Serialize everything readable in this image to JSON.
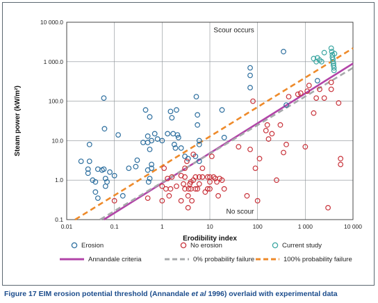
{
  "chart_data": {
    "type": "scatter",
    "xscale": "log",
    "yscale": "log",
    "xlim": [
      0.01,
      10000
    ],
    "ylim": [
      0.1,
      10000
    ],
    "xlabel": "Erodibility index",
    "ylabel": "Steam power (kW/m²)",
    "x_tick_labels": [
      "0.01",
      "0.1",
      "1",
      "10",
      "100",
      "1 000",
      "10 000"
    ],
    "y_tick_labels": [
      "0.1",
      "1.0",
      "10.0",
      "100.0",
      "1 000.0",
      "10 000.0"
    ],
    "annotations": [
      "Scour occurs",
      "No scour"
    ],
    "grid": true,
    "legend_position": "bottom",
    "colors": {
      "erosion": "#2c6e9e",
      "no_erosion": "#c8323a",
      "current_study": "#3aa6a1",
      "annandale": "#b244a8",
      "prob0": "#a7a9ab",
      "prob100": "#ee8a2a",
      "frame": "#5b6770",
      "caption": "#1b4c8c"
    },
    "series": [
      {
        "name": "Erosion",
        "marker": "open-circle",
        "points": [
          [
            0.02,
            3
          ],
          [
            0.03,
            8
          ],
          [
            0.03,
            3
          ],
          [
            0.028,
            1.9
          ],
          [
            0.028,
            1.5
          ],
          [
            0.035,
            1
          ],
          [
            0.04,
            0.9
          ],
          [
            0.04,
            0.5
          ],
          [
            0.045,
            0.35
          ],
          [
            0.045,
            1.9
          ],
          [
            0.055,
            1.8
          ],
          [
            0.06,
            1.9
          ],
          [
            0.06,
            120
          ],
          [
            0.062,
            20
          ],
          [
            0.065,
            0.7
          ],
          [
            0.065,
            1.1
          ],
          [
            0.07,
            0.9
          ],
          [
            0.08,
            1.6
          ],
          [
            0.1,
            1.3
          ],
          [
            0.12,
            14
          ],
          [
            0.15,
            0.4
          ],
          [
            0.2,
            2
          ],
          [
            0.28,
            2.2
          ],
          [
            0.3,
            3.2
          ],
          [
            0.4,
            9
          ],
          [
            0.45,
            60
          ],
          [
            0.5,
            13
          ],
          [
            0.5,
            9
          ],
          [
            0.5,
            1.8
          ],
          [
            0.52,
            0.9
          ],
          [
            0.55,
            40
          ],
          [
            0.55,
            1.1
          ],
          [
            0.55,
            6
          ],
          [
            0.6,
            10
          ],
          [
            0.6,
            2
          ],
          [
            0.6,
            2.5
          ],
          [
            0.7,
            15
          ],
          [
            0.8,
            11
          ],
          [
            1,
            10
          ],
          [
            1.3,
            15
          ],
          [
            1.5,
            55
          ],
          [
            1.6,
            38
          ],
          [
            1.7,
            15
          ],
          [
            1.8,
            8
          ],
          [
            1.9,
            6.5
          ],
          [
            2,
            60
          ],
          [
            2.1,
            14
          ],
          [
            2.2,
            12
          ],
          [
            2.5,
            6.5
          ],
          [
            3,
            4
          ],
          [
            3.5,
            3.5
          ],
          [
            5,
            4
          ],
          [
            5.2,
            130
          ],
          [
            5.5,
            45
          ],
          [
            5.5,
            25
          ],
          [
            6,
            10
          ],
          [
            6,
            8
          ],
          [
            6,
            3
          ],
          [
            18,
            60
          ],
          [
            20,
            12
          ],
          [
            70,
            700
          ],
          [
            70,
            450
          ],
          [
            70,
            220
          ],
          [
            350,
            1800
          ],
          [
            400,
            80
          ],
          [
            1800,
            330
          ]
        ]
      },
      {
        "name": "No erosion",
        "marker": "open-circle",
        "points": [
          [
            0.1,
            0.3
          ],
          [
            0.5,
            0.35
          ],
          [
            1,
            0.7
          ],
          [
            1,
            0.3
          ],
          [
            1.1,
            2
          ],
          [
            1.2,
            0.6
          ],
          [
            1.3,
            1.1
          ],
          [
            1.4,
            0.4
          ],
          [
            1.5,
            0.6
          ],
          [
            1.6,
            1.2
          ],
          [
            2,
            0.7
          ],
          [
            2.5,
            0.3
          ],
          [
            2.5,
            1.3
          ],
          [
            2.8,
            0.8
          ],
          [
            3,
            1.2
          ],
          [
            3,
            2
          ],
          [
            3,
            0.6
          ],
          [
            3.3,
            3
          ],
          [
            3.5,
            0.2
          ],
          [
            3.5,
            0.4
          ],
          [
            3.6,
            0.6
          ],
          [
            3.8,
            0.8
          ],
          [
            4,
            0.9
          ],
          [
            4,
            0.6
          ],
          [
            4.2,
            0.3
          ],
          [
            4.5,
            4.5
          ],
          [
            4.5,
            1
          ],
          [
            5,
            0.6
          ],
          [
            5,
            1.2
          ],
          [
            5.5,
            0.6
          ],
          [
            6,
            1.2
          ],
          [
            6,
            0.8
          ],
          [
            7,
            1.2
          ],
          [
            7,
            2
          ],
          [
            8,
            0.5
          ],
          [
            9,
            0.6
          ],
          [
            9,
            1.2
          ],
          [
            10,
            1.2
          ],
          [
            10,
            0.9
          ],
          [
            10,
            0.6
          ],
          [
            11,
            4
          ],
          [
            12,
            1.2
          ],
          [
            13,
            1.1
          ],
          [
            14,
            0.9
          ],
          [
            15,
            0.4
          ],
          [
            16,
            1.1
          ],
          [
            18,
            1
          ],
          [
            20,
            0.6
          ],
          [
            40,
            7
          ],
          [
            60,
            0.4
          ],
          [
            70,
            6
          ],
          [
            80,
            100
          ],
          [
            90,
            2
          ],
          [
            100,
            0.3
          ],
          [
            110,
            3.5
          ],
          [
            150,
            18
          ],
          [
            160,
            25
          ],
          [
            170,
            11
          ],
          [
            200,
            15
          ],
          [
            250,
            1
          ],
          [
            300,
            25
          ],
          [
            350,
            5
          ],
          [
            400,
            8
          ],
          [
            450,
            130
          ],
          [
            700,
            150
          ],
          [
            800,
            160
          ],
          [
            1000,
            7
          ],
          [
            1100,
            180
          ],
          [
            1200,
            250
          ],
          [
            1500,
            50
          ],
          [
            1700,
            120
          ],
          [
            2000,
            200
          ],
          [
            2500,
            120
          ],
          [
            3000,
            0.2
          ],
          [
            3500,
            300
          ],
          [
            3500,
            200
          ],
          [
            5000,
            90
          ],
          [
            5500,
            3.5
          ],
          [
            5500,
            2.5
          ]
        ]
      },
      {
        "name": "Current study",
        "marker": "open-circle",
        "points": [
          [
            1500,
            1200
          ],
          [
            1700,
            1000
          ],
          [
            1800,
            1250
          ],
          [
            2000,
            1100
          ],
          [
            2200,
            1000
          ],
          [
            2500,
            1700
          ],
          [
            3500,
            2200
          ],
          [
            3600,
            1800
          ],
          [
            3700,
            1500
          ],
          [
            3700,
            1300
          ],
          [
            3800,
            1150
          ],
          [
            3800,
            1000
          ],
          [
            3900,
            900
          ],
          [
            3900,
            800
          ],
          [
            4000,
            700
          ],
          [
            4000,
            600
          ],
          [
            4100,
            1600
          ]
        ]
      }
    ],
    "lines": [
      {
        "name": "Annandale criteria",
        "style": "solid",
        "points": [
          [
            0.06,
            0.1
          ],
          [
            10000,
            900
          ]
        ]
      },
      {
        "name": "0% probability failure",
        "style": "dashed",
        "points": [
          [
            0.05,
            0.1
          ],
          [
            10000,
            700
          ]
        ]
      },
      {
        "name": "100% probability failure",
        "style": "dashed",
        "points": [
          [
            0.015,
            0.1
          ],
          [
            10000,
            2200
          ]
        ]
      }
    ]
  },
  "caption": {
    "figure_label": "Figure 17",
    "text_before": " EIM erosion potential threshold (Annandale ",
    "text_italic": "et al",
    "text_after": " 1996) overlaid with experimental data"
  }
}
